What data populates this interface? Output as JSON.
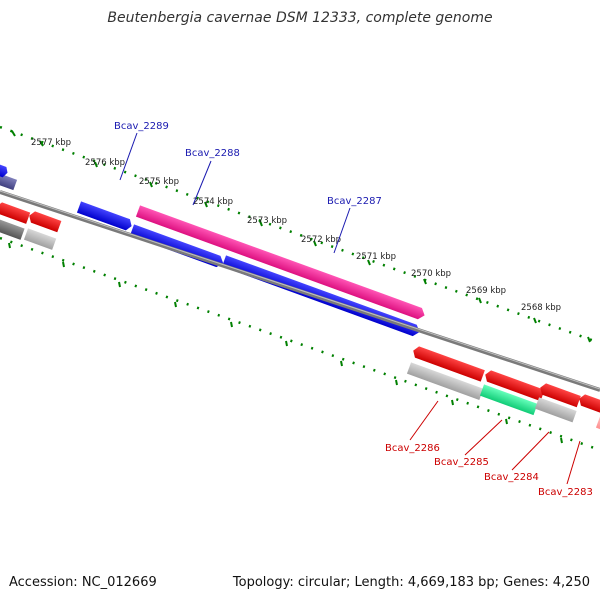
{
  "title": "Beutenbergia cavernae DSM 12333, complete genome",
  "footer": {
    "accession": "Accession: NC_012669",
    "info": "Topology: circular; Length: 4,669,183 bp; Genes: 4,250"
  },
  "colors": {
    "tick_green": "#008000",
    "backbone_gray": "#7a7a7a",
    "forward_label": "#1a1ab0",
    "reverse_label": "#cc0000",
    "gene_blue": "#0000ee",
    "gene_pink": "#ee1a8c",
    "gene_red": "#ee0000",
    "gene_gray": "#b0b0b0",
    "gene_green": "#22dd88",
    "gene_darkgray": "#707070",
    "gene_navy": "#55559a"
  },
  "kbp_labels": [
    {
      "text": "2577 kbp"
    },
    {
      "text": "2576 kbp"
    },
    {
      "text": "2575 kbp"
    },
    {
      "text": "2574 kbp"
    },
    {
      "text": "2573 kbp"
    },
    {
      "text": "2572 kbp"
    },
    {
      "text": "2571 kbp"
    },
    {
      "text": "2570 kbp"
    },
    {
      "text": "2569 kbp"
    },
    {
      "text": "2568 kbp"
    }
  ],
  "gene_labels": [
    {
      "text": "Bcav_2289",
      "strand": "forward"
    },
    {
      "text": "Bcav_2288",
      "strand": "forward"
    },
    {
      "text": "Bcav_2287",
      "strand": "forward"
    },
    {
      "text": "Bcav_2286",
      "strand": "reverse"
    },
    {
      "text": "Bcav_2285",
      "strand": "reverse"
    },
    {
      "text": "Bcav_2284",
      "strand": "reverse"
    },
    {
      "text": "Bcav_2283",
      "strand": "reverse"
    }
  ]
}
